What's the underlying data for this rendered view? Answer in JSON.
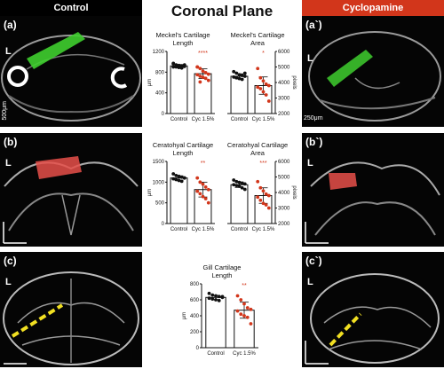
{
  "header": {
    "control": "Control",
    "title": "Coronal Plane",
    "cyclopamine": "Cyclopamine"
  },
  "panels": [
    {
      "id": "a",
      "label": "(a)",
      "side_label": "L",
      "scale": "500μm",
      "overlay": "green"
    },
    {
      "id": "a2",
      "label": "(a`)",
      "side_label": "L",
      "scale": "250μm",
      "overlay": "green"
    },
    {
      "id": "b",
      "label": "(b)",
      "side_label": "L",
      "scale": "",
      "overlay": "red"
    },
    {
      "id": "b2",
      "label": "(b`)",
      "side_label": "L",
      "scale": "",
      "overlay": "red"
    },
    {
      "id": "c",
      "label": "(c)",
      "side_label": "L",
      "scale": "",
      "overlay": "yellow"
    },
    {
      "id": "c2",
      "label": "(c`)",
      "side_label": "L",
      "scale": "",
      "overlay": "yellow"
    }
  ],
  "colors": {
    "control": "#111111",
    "cyc": "#d2361b",
    "green": "#3fcf2f",
    "red": "#e8504a",
    "yellow": "#f2e022"
  },
  "chart_data": [
    {
      "type": "bar",
      "title": "Meckel's Cartilage Length",
      "categories": [
        "Control",
        "Cyc 1.5%"
      ],
      "values": [
        920,
        770
      ],
      "ylabel": "μm",
      "ylim": [
        0,
        1200
      ],
      "ticks": [
        0,
        400,
        800,
        1200
      ],
      "sig": "****",
      "points": [
        [
          960,
          940,
          930,
          920,
          910,
          900,
          900,
          890,
          880,
          940,
          970
        ],
        [
          900,
          870,
          820,
          790,
          760,
          750,
          720,
          700,
          680,
          640,
          900,
          610
        ]
      ]
    },
    {
      "type": "bar",
      "title": "Meckel's Cartilage Area",
      "categories": [
        "Control",
        "Cyc 1.5%"
      ],
      "values": [
        4400,
        3800
      ],
      "ylabel": "pixels",
      "ylim": [
        2000,
        6000
      ],
      "ticks": [
        2000,
        3000,
        4000,
        5000,
        6000
      ],
      "sig": "*",
      "points": [
        [
          4700,
          4600,
          4500,
          4450,
          4400,
          4350,
          4300,
          4250,
          4200,
          4600
        ],
        [
          4900,
          4300,
          4100,
          3900,
          3800,
          3700,
          3600,
          3400,
          3200,
          2800
        ]
      ]
    },
    {
      "type": "bar",
      "title": "Ceratohyal Cartilage Length",
      "categories": [
        "Control",
        "Cyc 1.5%"
      ],
      "values": [
        1100,
        820
      ],
      "ylabel": "μm",
      "ylim": [
        0,
        1500
      ],
      "ticks": [
        0,
        500,
        1000,
        1500
      ],
      "sig": "**",
      "points": [
        [
          1200,
          1160,
          1140,
          1120,
          1100,
          1080,
          1060,
          1040,
          1020,
          1100
        ],
        [
          1100,
          1000,
          950,
          880,
          820,
          780,
          720,
          650,
          600,
          500
        ]
      ]
    },
    {
      "type": "bar",
      "title": "Ceratohyal Cartilage Area",
      "categories": [
        "Control",
        "Cyc 1.5%"
      ],
      "values": [
        4500,
        3800
      ],
      "ylabel": "pixels",
      "ylim": [
        2000,
        6000
      ],
      "ticks": [
        2000,
        3000,
        4000,
        5000,
        6000
      ],
      "sig": "***",
      "points": [
        [
          4800,
          4700,
          4650,
          4600,
          4550,
          4500,
          4450,
          4400,
          4300,
          4200
        ],
        [
          4700,
          4300,
          4100,
          3900,
          3800,
          3700,
          3500,
          3300,
          3200,
          3000
        ]
      ]
    },
    {
      "type": "bar",
      "title": "Gill Cartilage Length",
      "categories": [
        "Control",
        "Cyc 1.5%"
      ],
      "values": [
        630,
        470
      ],
      "ylabel": "μm",
      "ylim": [
        0,
        800
      ],
      "ticks": [
        0,
        200,
        400,
        600,
        800
      ],
      "sig": "**",
      "points": [
        [
          680,
          660,
          650,
          640,
          630,
          620,
          610,
          600,
          590,
          640
        ],
        [
          650,
          600,
          550,
          500,
          480,
          460,
          420,
          400,
          380,
          300
        ]
      ]
    }
  ]
}
